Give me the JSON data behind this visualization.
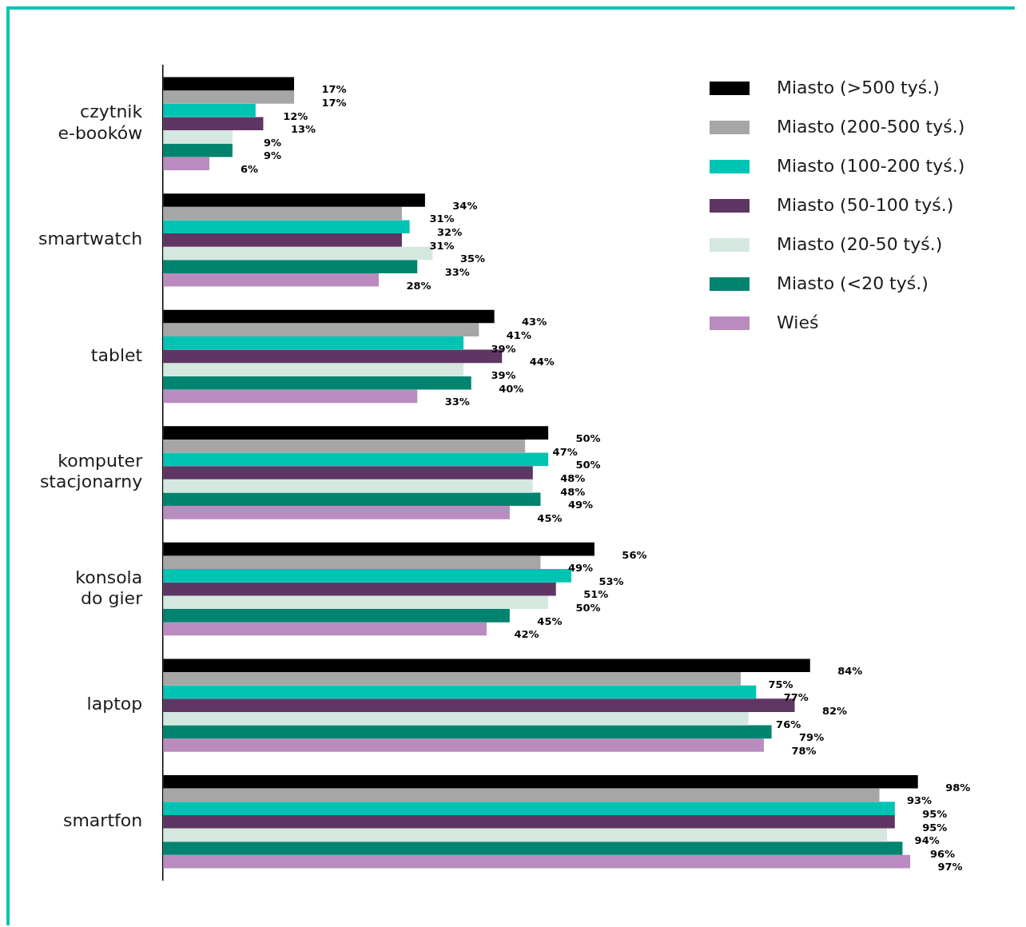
{
  "chart_data": {
    "type": "bar",
    "orientation": "horizontal",
    "legend": "top right",
    "categories": [
      "czytnik e-booków",
      "smartwatch",
      "tablet",
      "komputer stacjonarny",
      "konsola do gier",
      "laptop",
      "smartfon"
    ],
    "series": [
      {
        "name": "Miasto (>500 tyś.)",
        "color": "#000000",
        "values": [
          17,
          34,
          43,
          50,
          56,
          84,
          98
        ],
        "value_labels": [
          "17%",
          "34%",
          "43%",
          "50%",
          "56%",
          "84%",
          "98%"
        ]
      },
      {
        "name": "Miasto (200-500 tyś.)",
        "color": "#a6a6a6",
        "values": [
          17,
          31,
          41,
          47,
          49,
          75,
          93
        ],
        "value_labels": [
          "17%",
          "31%",
          "41%",
          "47%",
          "49%",
          "75%",
          "93%"
        ]
      },
      {
        "name": "Miasto (100-200 tyś.)",
        "color": "#00c4b3",
        "values": [
          12,
          32,
          39,
          50,
          53,
          77,
          95
        ],
        "value_labels": [
          "12%",
          "32%",
          "39%",
          "50%",
          "53%",
          "77%",
          "95%"
        ]
      },
      {
        "name": "Miasto (50-100 tyś.)",
        "color": "#5f3663",
        "values": [
          13,
          31,
          44,
          48,
          51,
          82,
          95
        ],
        "value_labels": [
          "13%",
          "31%",
          "44%",
          "48%",
          "51%",
          "82%",
          "95%"
        ]
      },
      {
        "name": "Miasto (20-50 tyś.)",
        "color": "#d4e8e0",
        "values": [
          9,
          35,
          39,
          48,
          50,
          76,
          94
        ],
        "value_labels": [
          "9%",
          "35%",
          "39%",
          "48%",
          "50%",
          "76%",
          "94%"
        ]
      },
      {
        "name": "Miasto (<20 tyś.)",
        "color": "#00836f",
        "values": [
          9,
          33,
          40,
          49,
          45,
          79,
          96
        ],
        "value_labels": [
          "9%",
          "33%",
          "40%",
          "49%",
          "45%",
          "79%",
          "96%"
        ]
      },
      {
        "name": "Wieś",
        "color": "#b98bbf",
        "values": [
          6,
          28,
          33,
          45,
          42,
          78,
          97
        ],
        "value_labels": [
          "6%",
          "28%",
          "33%",
          "45%",
          "42%",
          "78%",
          "97%"
        ]
      }
    ]
  }
}
